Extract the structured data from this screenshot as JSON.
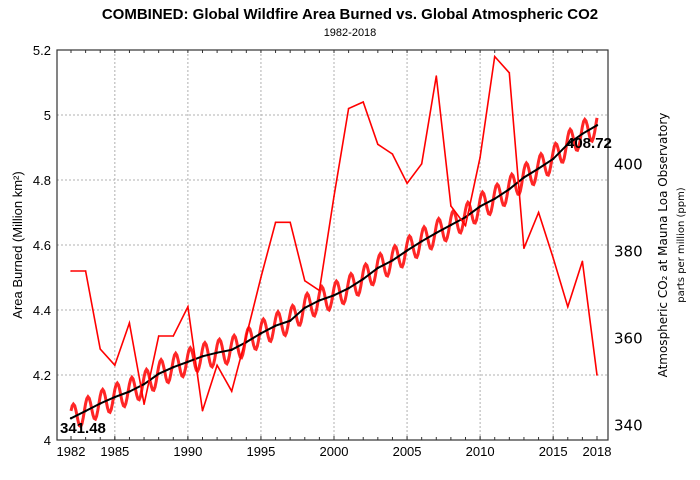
{
  "chart_data": {
    "type": "line",
    "title": "COMBINED: Global Wildfire Area Burned vs. Global Atmospheric CO2",
    "subtitle": "1982-2018",
    "xlabel": "",
    "ylabel": "Area Burned (Million km²)",
    "ylabel_right": "Atmospheric CO₂ at Mauna Loa Observatory",
    "ylabel_right_sub": "parts per million (ppm)",
    "xlim": [
      1982,
      2018
    ],
    "ylim": [
      4.0,
      5.2
    ],
    "ylim_right": [
      336.5,
      426
    ],
    "grid": true,
    "x_ticks": [
      1982,
      1985,
      1990,
      1995,
      2000,
      2005,
      2010,
      2015,
      2018
    ],
    "x_tick_labels": [
      "1982",
      "1985",
      "1990",
      "1995",
      "2000",
      "2005",
      "2010",
      "2015",
      "2018"
    ],
    "y_ticks": [
      4.0,
      4.2,
      4.4,
      4.6,
      4.8,
      5.0,
      5.2
    ],
    "y_tick_labels": [
      "4",
      "4.2",
      "4.4",
      "4.6",
      "4.8",
      "5",
      "5.2"
    ],
    "y_ticks_right": [
      340,
      360,
      380,
      400
    ],
    "y_tick_labels_right": [
      "340",
      "360",
      "380",
      "400"
    ],
    "x": [
      1982,
      1983,
      1984,
      1985,
      1986,
      1987,
      1988,
      1989,
      1990,
      1991,
      1992,
      1993,
      1994,
      1995,
      1996,
      1997,
      1998,
      1999,
      2000,
      2001,
      2002,
      2003,
      2004,
      2005,
      2006,
      2007,
      2008,
      2009,
      2010,
      2011,
      2012,
      2013,
      2014,
      2015,
      2016,
      2017,
      2018
    ],
    "series": [
      {
        "name": "Global Wildfire Area Burned",
        "axis": "left",
        "color": "#ff0000",
        "values": [
          4.52,
          4.52,
          4.28,
          4.23,
          4.36,
          4.11,
          4.32,
          4.32,
          4.41,
          4.09,
          4.23,
          4.15,
          4.32,
          4.5,
          4.67,
          4.67,
          4.49,
          4.46,
          4.75,
          5.02,
          5.04,
          4.91,
          4.88,
          4.79,
          4.85,
          5.12,
          4.72,
          4.66,
          4.87,
          5.18,
          5.13,
          4.59,
          4.7,
          4.56,
          4.41,
          4.55,
          4.2
        ]
      },
      {
        "name": "Atmospheric CO2 (annual trend)",
        "axis": "right",
        "color": "#000000",
        "values": [
          341.48,
          343.15,
          344.87,
          346.35,
          347.61,
          349.31,
          351.69,
          353.2,
          354.45,
          355.7,
          356.54,
          357.21,
          358.96,
          360.97,
          362.74,
          363.88,
          366.84,
          368.54,
          369.71,
          371.32,
          373.45,
          375.98,
          377.7,
          379.98,
          382.09,
          384.02,
          385.83,
          387.64,
          390.1,
          391.85,
          394.06,
          396.74,
          398.81,
          401.01,
          404.41,
          406.76,
          408.72
        ]
      },
      {
        "name": "Atmospheric CO2 (monthly, seasonal)",
        "axis": "right",
        "color": "#ff0000",
        "seasonal_amplitude_ppm": 3
      }
    ],
    "annotations": [
      {
        "text": "341.48",
        "x": 1982,
        "series": "co2"
      },
      {
        "text": "408.72",
        "x": 2018,
        "series": "co2"
      }
    ]
  }
}
